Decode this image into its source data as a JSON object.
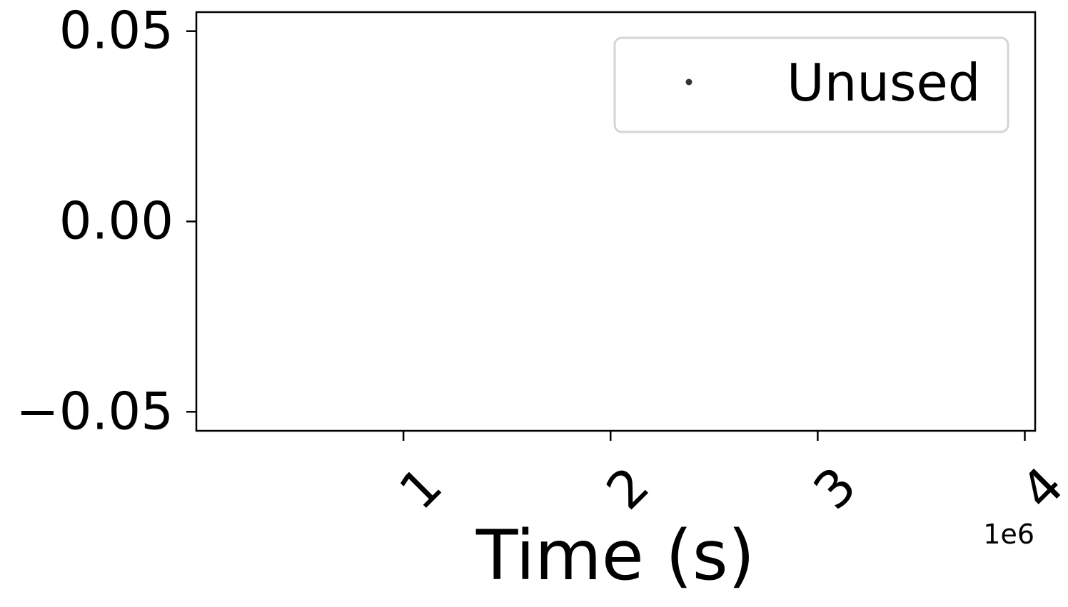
{
  "chart_data": {
    "type": "scatter",
    "title": "",
    "xlabel": "Time (s)",
    "ylabel": "",
    "x_offset_label": "1e6",
    "xlim": [
      0,
      4.05
    ],
    "ylim": [
      -0.055,
      0.055
    ],
    "x_ticks": [
      {
        "value": 1,
        "label": "1"
      },
      {
        "value": 2,
        "label": "2"
      },
      {
        "value": 3,
        "label": "3"
      },
      {
        "value": 4,
        "label": "4"
      }
    ],
    "y_ticks": [
      {
        "value": 0.05,
        "label": "0.05"
      },
      {
        "value": 0.0,
        "label": "0.00"
      },
      {
        "value": -0.05,
        "label": "−0.05"
      }
    ],
    "x_tick_rotation_deg": 45,
    "grid": false,
    "legend_position": "top-right",
    "series": [
      {
        "name": "Unused",
        "marker": "point",
        "color": "#333333",
        "points": []
      }
    ]
  }
}
